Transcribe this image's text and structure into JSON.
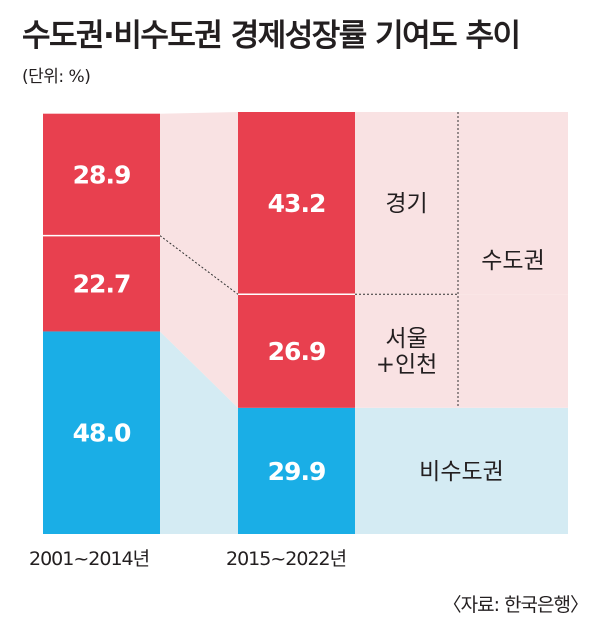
{
  "title": "수도권·비수도권 경제성장률 기여도 추이",
  "unit": "(단위: %)",
  "source": "〈자료: 한국은행〉",
  "chart_data": {
    "type": "bar",
    "stacked": true,
    "categories": [
      "2001~2014년",
      "2015~2022년"
    ],
    "series": [
      {
        "name": "비수도권",
        "values": [
          48.0,
          29.9
        ],
        "color": "#1aaee6",
        "band_color": "#d4ebf3"
      },
      {
        "name": "서울 +인천",
        "values": [
          22.7,
          26.9
        ],
        "color": "#e8404f",
        "band_color": "#f9e2e3"
      },
      {
        "name": "경기",
        "values": [
          28.9,
          43.2
        ],
        "color": "#e8404f",
        "band_color": "#f9e2e3"
      }
    ],
    "group_label": "수도권",
    "ylim": [
      0,
      100
    ],
    "value_label_color": "#ffffff"
  }
}
